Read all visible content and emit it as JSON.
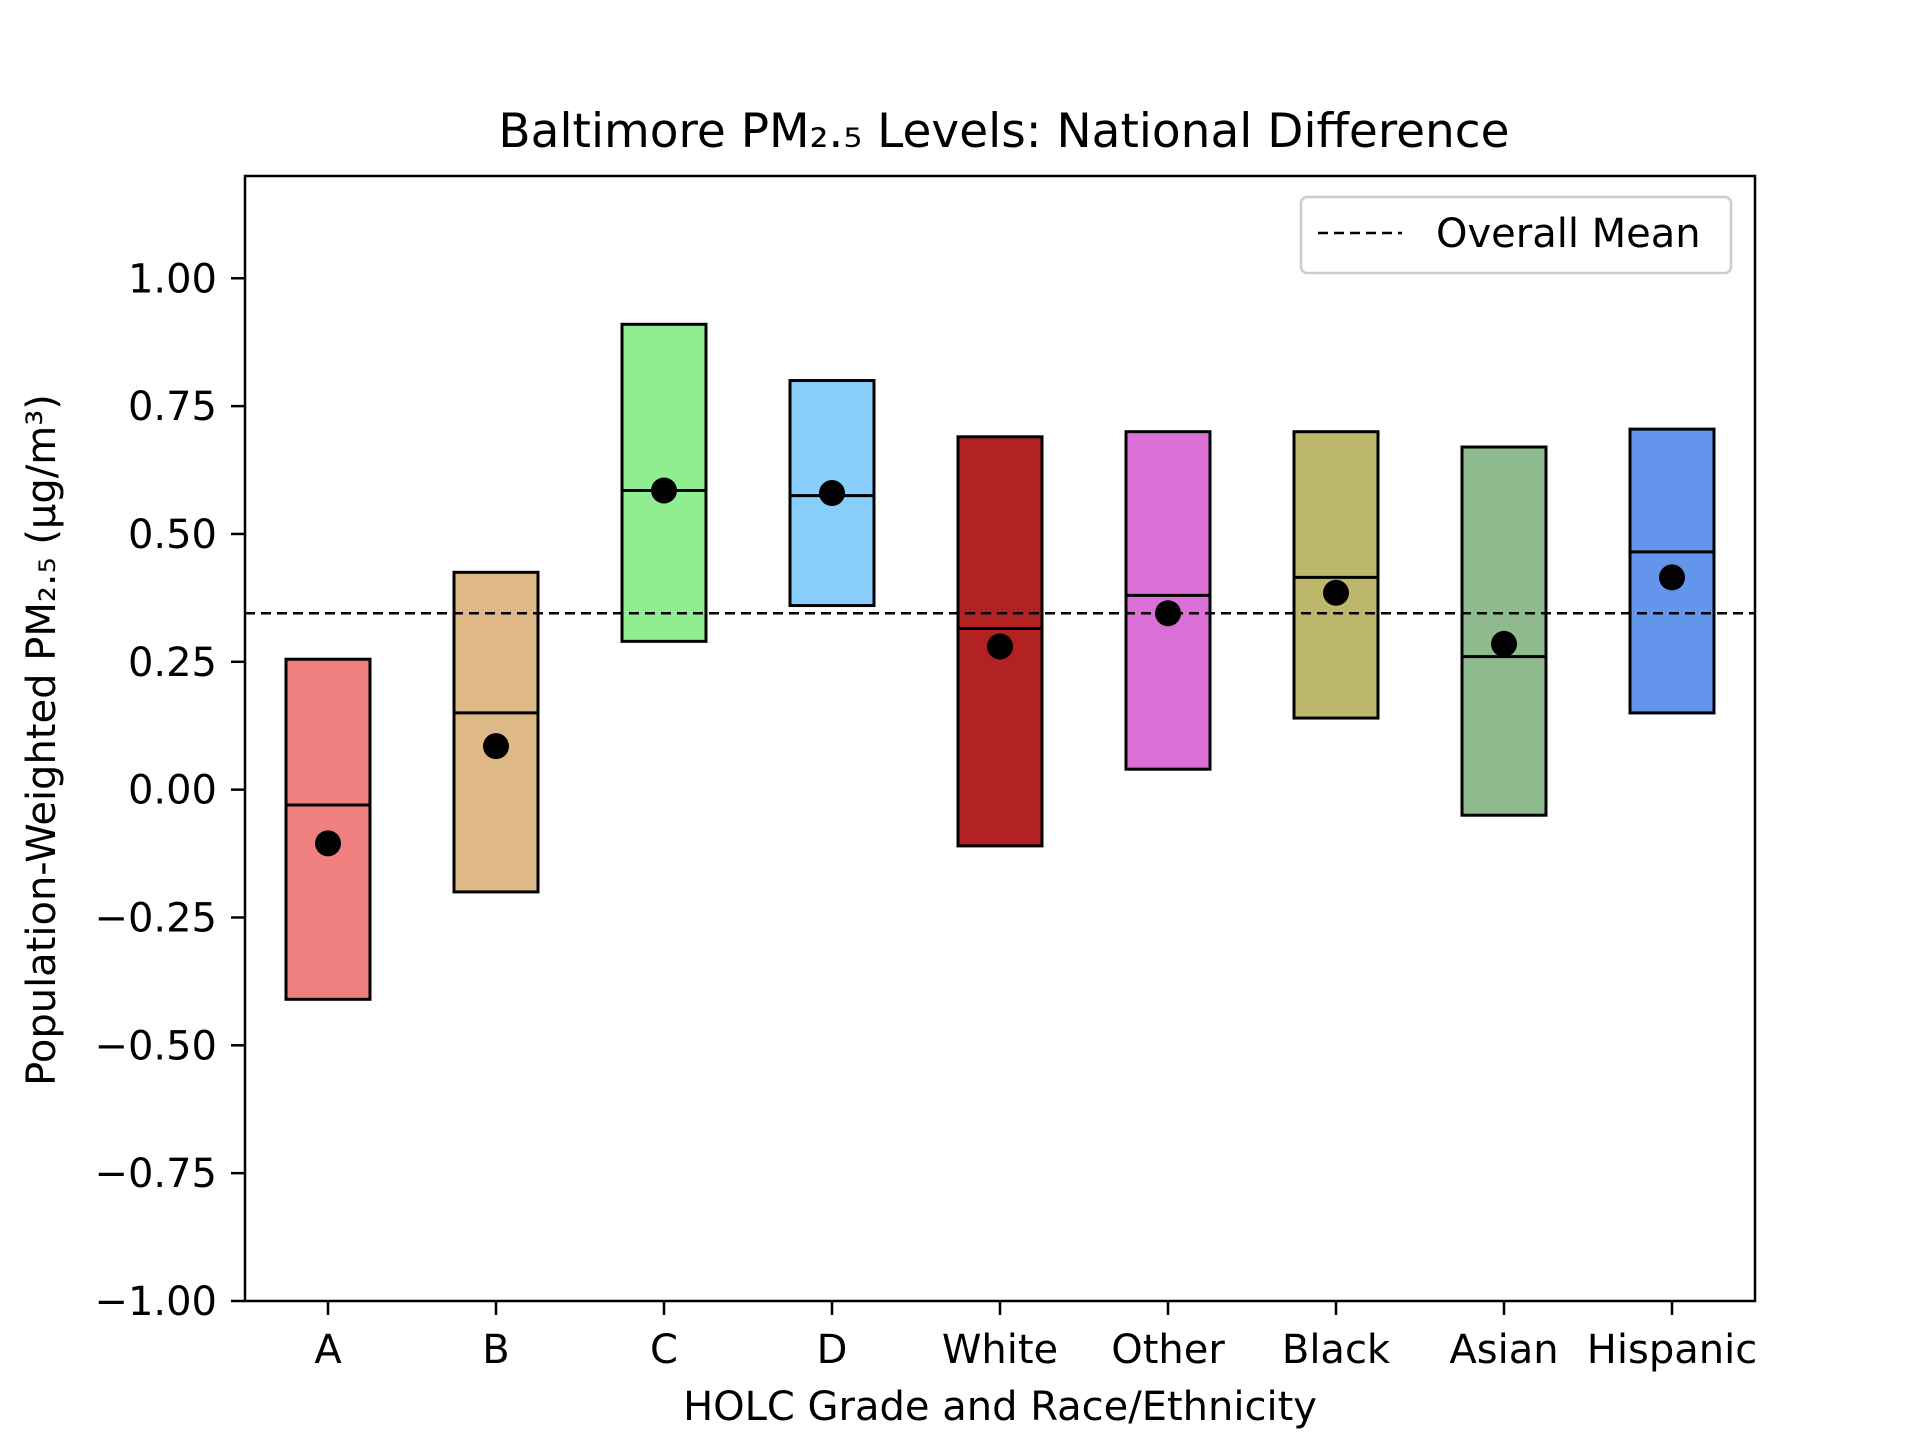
{
  "chart_data": {
    "type": "box",
    "title": "Baltimore PM₂.₅ Levels: National Difference",
    "xlabel": "HOLC Grade and Race/Ethnicity",
    "ylabel": "Population-Weighted PM₂.₅ (μg/m³)",
    "ylim": [
      -1.0,
      1.2
    ],
    "yticks": [
      -1.0,
      -0.75,
      -0.5,
      -0.25,
      0.0,
      0.25,
      0.5,
      0.75,
      1.0
    ],
    "ytick_labels": [
      "−1.00",
      "−0.75",
      "−0.50",
      "−0.25",
      "0.00",
      "0.25",
      "0.50",
      "0.75",
      "1.00"
    ],
    "categories": [
      "A",
      "B",
      "C",
      "D",
      "White",
      "Other",
      "Black",
      "Asian",
      "Hispanic"
    ],
    "box_low": [
      -0.41,
      -0.2,
      0.29,
      0.36,
      -0.11,
      0.04,
      0.14,
      -0.05,
      0.15
    ],
    "box_high": [
      0.255,
      0.425,
      0.91,
      0.8,
      0.69,
      0.7,
      0.7,
      0.67,
      0.705
    ],
    "median": [
      -0.03,
      0.15,
      0.585,
      0.575,
      0.315,
      0.38,
      0.415,
      0.26,
      0.465
    ],
    "mean_point": [
      -0.105,
      0.085,
      0.585,
      0.58,
      0.28,
      0.345,
      0.385,
      0.285,
      0.415
    ],
    "colors": [
      "#f08080",
      "#deb887",
      "#90ee90",
      "#87cefa",
      "#b22222",
      "#da70d6",
      "#bdb76b",
      "#8fbc8f",
      "#6495ed"
    ],
    "overall_mean": 0.345,
    "legend": {
      "label": "Overall Mean",
      "position": "top-right",
      "style": "dashed"
    },
    "grid": false
  }
}
